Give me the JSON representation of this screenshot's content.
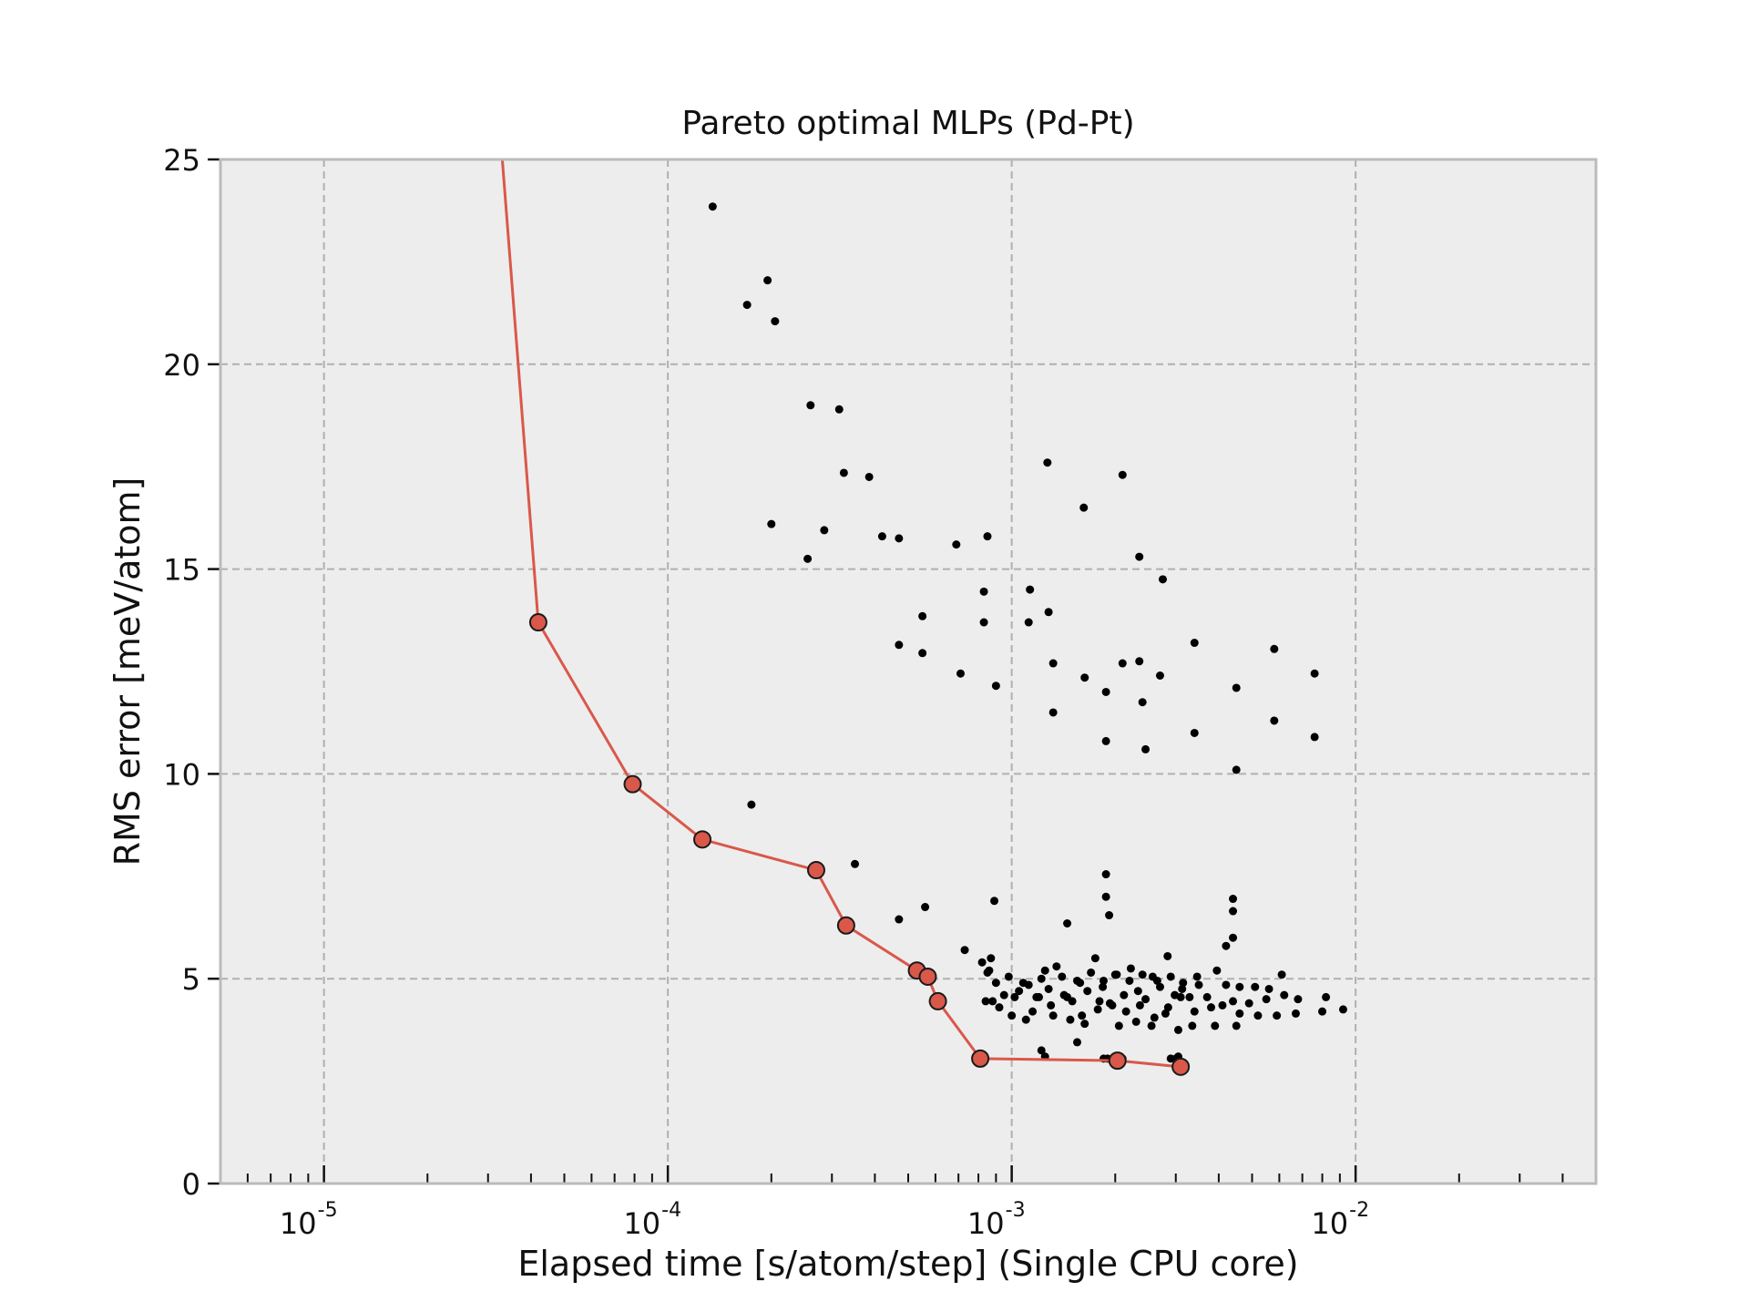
{
  "chart_data": {
    "type": "scatter",
    "title": "Pareto optimal MLPs (Pd-Pt)",
    "xlabel": "Elapsed time [s/atom/step] (Single CPU core)",
    "ylabel": "RMS error [meV/atom]",
    "xscale": "log",
    "xlim": [
      5e-06,
      0.05
    ],
    "ylim": [
      0,
      25
    ],
    "grid": true,
    "x_ticks": [
      {
        "value": 1e-05,
        "base": "10",
        "exp": "-5"
      },
      {
        "value": 0.0001,
        "base": "10",
        "exp": "-4"
      },
      {
        "value": 0.001,
        "base": "10",
        "exp": "-3"
      },
      {
        "value": 0.01,
        "base": "10",
        "exp": "-2"
      }
    ],
    "y_ticks": [
      "0",
      "5",
      "10",
      "15",
      "20",
      "25"
    ],
    "colors": {
      "pareto": "#d9584a",
      "points": "#000000",
      "plot_bg": "#ededed",
      "grid": "#b0b0b0"
    },
    "series": [
      {
        "role": "pareto-front",
        "style": "line+markers",
        "x": [
          3.3e-05,
          4.2e-05,
          7.9e-05,
          0.000126,
          0.00027,
          0.00033,
          0.00053,
          0.00057,
          0.00061,
          0.00081,
          0.00203,
          0.0031
        ],
        "y": [
          25.0,
          13.7,
          9.75,
          8.4,
          7.65,
          6.3,
          5.2,
          5.05,
          4.45,
          3.05,
          3.0,
          2.85
        ],
        "marker_from_index": 1
      },
      {
        "role": "all-models",
        "style": "markers",
        "x": [
          0.000135,
          0.000195,
          0.00017,
          0.000205,
          0.00026,
          0.000315,
          0.000325,
          0.000385,
          0.0002,
          0.000285,
          0.00042,
          0.00047,
          0.000255,
          0.00069,
          0.00085,
          0.00083,
          0.00127,
          0.00162,
          0.0021,
          0.00235,
          0.00275,
          0.00113,
          0.00128,
          0.00112,
          0.00055,
          0.00083,
          0.00047,
          0.00055,
          0.00071,
          0.0009,
          0.00132,
          0.00163,
          0.00188,
          0.0021,
          0.00235,
          0.0027,
          0.0034,
          0.0045,
          0.0058,
          0.0076,
          0.00132,
          0.0024,
          0.00188,
          0.00245,
          0.0034,
          0.0045,
          0.0058,
          0.0076,
          0.000175,
          0.00035,
          0.00188,
          0.00188,
          0.00192,
          0.0044,
          0.0044,
          0.00089,
          0.00056,
          0.00047,
          0.00145,
          0.0044,
          0.0042,
          0.00073
        ],
        "y": [
          23.85,
          22.05,
          21.45,
          21.05,
          19.0,
          18.9,
          17.35,
          17.25,
          16.1,
          15.95,
          15.8,
          15.75,
          15.25,
          15.6,
          15.8,
          14.45,
          17.6,
          16.5,
          17.3,
          15.3,
          14.75,
          14.5,
          13.95,
          13.7,
          13.85,
          13.7,
          13.15,
          12.95,
          12.45,
          12.15,
          12.7,
          12.35,
          12.0,
          12.7,
          12.75,
          12.4,
          13.2,
          12.1,
          13.05,
          12.45,
          11.5,
          11.75,
          10.8,
          10.6,
          11.0,
          10.1,
          11.3,
          10.9,
          9.25,
          7.8,
          7.55,
          7.0,
          6.55,
          6.95,
          6.65,
          6.9,
          6.75,
          6.45,
          6.35,
          6.0,
          5.8,
          5.7
        ]
      },
      {
        "role": "all-models-cluster",
        "style": "markers",
        "x": [
          0.00082,
          0.00086,
          0.0009,
          0.00095,
          0.00105,
          0.00112,
          0.00118,
          0.00122,
          0.00128,
          0.00135,
          0.00142,
          0.0015,
          0.00158,
          0.00166,
          0.00175,
          0.00184,
          0.00193,
          0.00202,
          0.00212,
          0.00222,
          0.00233,
          0.00245,
          0.00257,
          0.0027,
          0.00284,
          0.00298,
          0.00313,
          0.00329,
          0.00346,
          0.0038,
          0.0042,
          0.0046,
          0.0051,
          0.0056,
          0.0062,
          0.0068,
          0.0082,
          0.0092,
          0.00084,
          0.00092,
          0.00102,
          0.00115,
          0.0013,
          0.00145,
          0.0016,
          0.00178,
          0.00196,
          0.00215,
          0.00236,
          0.0026,
          0.00285,
          0.0031,
          0.0034,
          0.0037,
          0.0041,
          0.0046,
          0.0052,
          0.0059,
          0.0067,
          0.008,
          0.00085,
          0.00098,
          0.00108,
          0.00125,
          0.0014,
          0.00155,
          0.0017,
          0.00185,
          0.002,
          0.0022,
          0.0024,
          0.00265,
          0.0029,
          0.00315,
          0.0035,
          0.00395,
          0.0044,
          0.0049,
          0.0055,
          0.0061,
          0.00088,
          0.001,
          0.0011,
          0.0012,
          0.00132,
          0.00148,
          0.00163,
          0.0018,
          0.00205,
          0.0023,
          0.00255,
          0.0028,
          0.00305,
          0.00335,
          0.0039,
          0.0045,
          0.00125,
          0.0019,
          0.0029,
          0.00305,
          0.00122,
          0.00185,
          0.0021,
          0.003,
          0.00155,
          0.00087
        ],
        "y": [
          5.4,
          5.2,
          4.9,
          4.6,
          4.7,
          4.85,
          4.55,
          5.0,
          4.75,
          5.3,
          4.6,
          4.45,
          4.9,
          4.7,
          5.5,
          4.8,
          4.4,
          5.1,
          4.6,
          5.25,
          4.7,
          4.5,
          5.05,
          4.8,
          5.55,
          4.6,
          4.75,
          4.55,
          5.05,
          4.3,
          4.85,
          4.8,
          4.8,
          4.75,
          4.6,
          4.5,
          4.55,
          4.25,
          4.45,
          4.3,
          4.55,
          4.2,
          4.35,
          4.55,
          4.1,
          4.25,
          4.35,
          4.2,
          4.35,
          4.05,
          4.3,
          4.55,
          4.2,
          4.55,
          4.35,
          4.15,
          4.1,
          4.1,
          4.15,
          4.2,
          5.15,
          5.05,
          4.9,
          5.2,
          5.05,
          4.95,
          5.15,
          4.95,
          5.1,
          4.95,
          5.1,
          4.95,
          5.05,
          4.9,
          4.85,
          5.2,
          4.45,
          4.4,
          4.5,
          5.1,
          4.45,
          4.1,
          4.0,
          4.55,
          4.1,
          4.0,
          3.9,
          4.45,
          3.85,
          3.95,
          3.85,
          4.15,
          3.75,
          3.85,
          3.85,
          3.85,
          3.1,
          3.05,
          3.05,
          3.1,
          3.25,
          3.05,
          3.05,
          3.05,
          3.45,
          5.5
        ]
      }
    ]
  }
}
